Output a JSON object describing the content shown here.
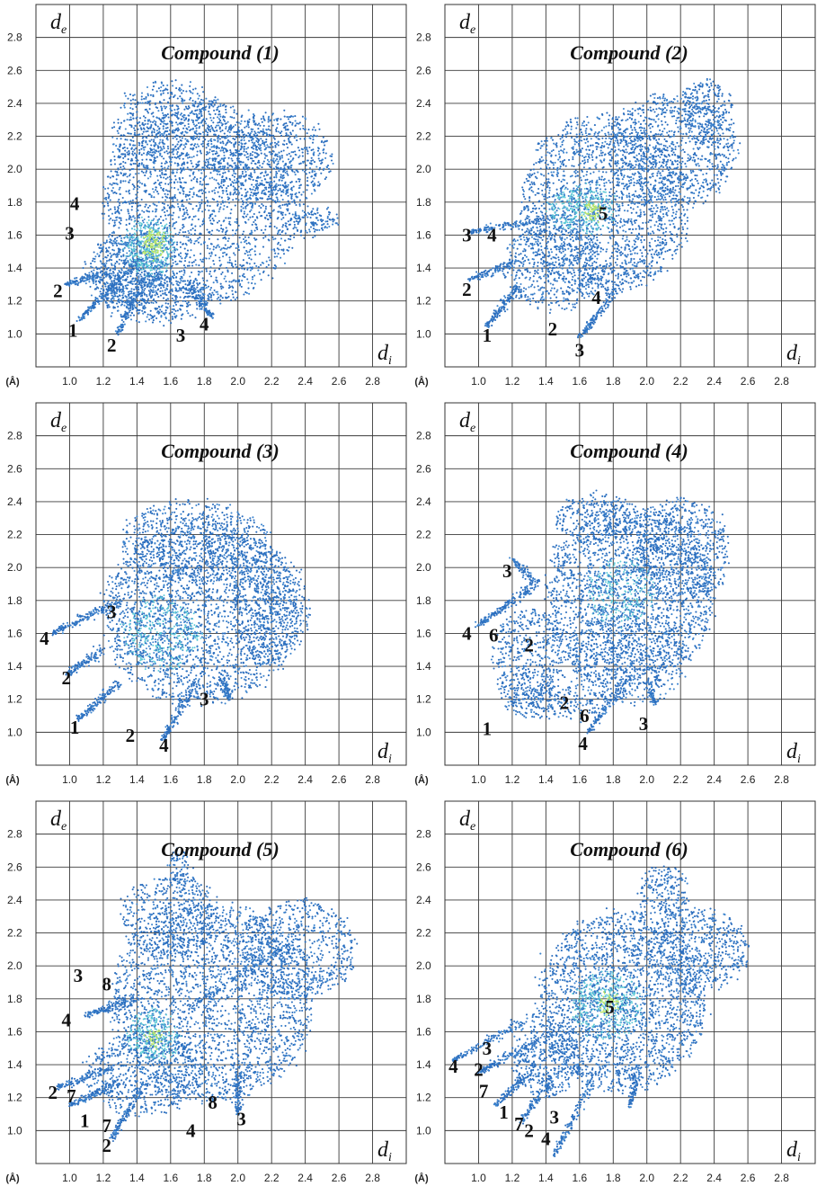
{
  "figure": {
    "unit_label": "(Å)",
    "x_axis_symbol": "d",
    "x_axis_subscript": "i",
    "y_axis_symbol": "d",
    "y_axis_subscript": "e",
    "x_ticks": [
      "1.0",
      "1.2",
      "1.4",
      "1.6",
      "1.8",
      "2.0",
      "2.2",
      "2.4",
      "2.6",
      "2.8"
    ],
    "y_ticks": [
      "1.0",
      "1.2",
      "1.4",
      "1.6",
      "1.8",
      "2.0",
      "2.2",
      "2.4",
      "2.6",
      "2.8"
    ]
  },
  "chart_data": [
    {
      "type": "scatter",
      "title": "Compound (1)",
      "xlim": [
        0.8,
        3.0
      ],
      "ylim": [
        0.8,
        3.0
      ],
      "grid": true,
      "colors": {
        "points": "#2c6fbf",
        "dense": "#5cc9d6",
        "core": "#b9e66a"
      },
      "regions": [
        {
          "kind": "blob",
          "cx": 1.78,
          "cy": 1.8,
          "rx": 0.58,
          "ry": 0.62,
          "n": 2200
        },
        {
          "kind": "blob",
          "cx": 2.2,
          "cy": 2.05,
          "rx": 0.36,
          "ry": 0.3,
          "n": 700
        },
        {
          "kind": "blob",
          "cx": 1.6,
          "cy": 2.25,
          "rx": 0.35,
          "ry": 0.28,
          "n": 600
        },
        {
          "kind": "blob",
          "cx": 1.32,
          "cy": 1.38,
          "rx": 0.22,
          "ry": 0.22,
          "n": 500
        },
        {
          "kind": "blob",
          "cx": 1.52,
          "cy": 1.22,
          "rx": 0.32,
          "ry": 0.14,
          "n": 400
        },
        {
          "kind": "blob",
          "cx": 2.45,
          "cy": 1.68,
          "rx": 0.14,
          "ry": 0.08,
          "n": 120
        },
        {
          "kind": "spike",
          "from": [
            1.45,
            1.48
          ],
          "to": [
            1.05,
            1.08
          ],
          "n": 180
        },
        {
          "kind": "spike",
          "from": [
            1.25,
            1.38
          ],
          "to": [
            0.98,
            1.3
          ],
          "n": 120
        },
        {
          "kind": "spike",
          "from": [
            1.45,
            1.35
          ],
          "to": [
            1.28,
            1.0
          ],
          "n": 120
        },
        {
          "kind": "spike",
          "from": [
            1.7,
            1.3
          ],
          "to": [
            1.85,
            1.1
          ],
          "n": 100
        },
        {
          "kind": "dense",
          "cx": 1.48,
          "cy": 1.53,
          "rx": 0.14,
          "ry": 0.16,
          "n": 420
        },
        {
          "kind": "core",
          "cx": 1.5,
          "cy": 1.55,
          "rx": 0.06,
          "ry": 0.08,
          "n": 120
        }
      ],
      "labels": [
        {
          "text": "1",
          "x": 1.02,
          "y": 1.02
        },
        {
          "text": "2",
          "x": 0.93,
          "y": 1.26
        },
        {
          "text": "2",
          "x": 1.25,
          "y": 0.93
        },
        {
          "text": "3",
          "x": 1.0,
          "y": 1.61
        },
        {
          "text": "4",
          "x": 1.03,
          "y": 1.79
        },
        {
          "text": "3",
          "x": 1.66,
          "y": 0.99
        },
        {
          "text": "4",
          "x": 1.8,
          "y": 1.06
        }
      ]
    },
    {
      "type": "scatter",
      "title": "Compound (2)",
      "xlim": [
        0.8,
        3.0
      ],
      "ylim": [
        0.8,
        3.0
      ],
      "grid": true,
      "colors": {
        "points": "#2c6fbf",
        "dense": "#5cc9d6",
        "core": "#b9e66a"
      },
      "regions": [
        {
          "kind": "blob",
          "cx": 1.75,
          "cy": 1.78,
          "rx": 0.5,
          "ry": 0.55,
          "n": 2000
        },
        {
          "kind": "blob",
          "cx": 2.15,
          "cy": 2.12,
          "rx": 0.38,
          "ry": 0.35,
          "n": 900
        },
        {
          "kind": "blob",
          "cx": 2.35,
          "cy": 2.35,
          "rx": 0.16,
          "ry": 0.2,
          "n": 250
        },
        {
          "kind": "blob",
          "cx": 1.45,
          "cy": 1.42,
          "rx": 0.3,
          "ry": 0.28,
          "n": 500
        },
        {
          "kind": "spike",
          "from": [
            1.25,
            1.3
          ],
          "to": [
            1.05,
            1.05
          ],
          "n": 150
        },
        {
          "kind": "spike",
          "from": [
            1.25,
            1.45
          ],
          "to": [
            0.95,
            1.33
          ],
          "n": 120
        },
        {
          "kind": "spike",
          "from": [
            1.4,
            1.7
          ],
          "to": [
            0.95,
            1.62
          ],
          "n": 130
        },
        {
          "kind": "spike",
          "from": [
            1.85,
            1.3
          ],
          "to": [
            1.6,
            0.98
          ],
          "n": 130
        },
        {
          "kind": "dense",
          "cx": 1.62,
          "cy": 1.76,
          "rx": 0.2,
          "ry": 0.14,
          "n": 360
        },
        {
          "kind": "core",
          "cx": 1.68,
          "cy": 1.74,
          "rx": 0.05,
          "ry": 0.05,
          "n": 60
        }
      ],
      "labels": [
        {
          "text": "1",
          "x": 1.05,
          "y": 0.99
        },
        {
          "text": "2",
          "x": 0.93,
          "y": 1.27
        },
        {
          "text": "2",
          "x": 1.44,
          "y": 1.03
        },
        {
          "text": "3",
          "x": 0.93,
          "y": 1.6
        },
        {
          "text": "4",
          "x": 1.08,
          "y": 1.6
        },
        {
          "text": "4",
          "x": 1.7,
          "y": 1.22
        },
        {
          "text": "3",
          "x": 1.6,
          "y": 0.9
        },
        {
          "text": "5",
          "x": 1.74,
          "y": 1.73
        }
      ]
    },
    {
      "type": "scatter",
      "title": "Compound (3)",
      "xlim": [
        0.8,
        3.0
      ],
      "ylim": [
        0.8,
        3.0
      ],
      "grid": true,
      "colors": {
        "points": "#2c6fbf",
        "dense": "#5cc9d6",
        "core": "#b9e66a"
      },
      "regions": [
        {
          "kind": "blob",
          "cx": 1.78,
          "cy": 1.72,
          "rx": 0.58,
          "ry": 0.55,
          "n": 2400
        },
        {
          "kind": "blob",
          "cx": 1.75,
          "cy": 2.15,
          "rx": 0.45,
          "ry": 0.25,
          "n": 700
        },
        {
          "kind": "blob",
          "cx": 2.2,
          "cy": 1.75,
          "rx": 0.22,
          "ry": 0.35,
          "n": 400
        },
        {
          "kind": "spike",
          "from": [
            1.3,
            1.3
          ],
          "to": [
            1.05,
            1.08
          ],
          "n": 140
        },
        {
          "kind": "spike",
          "from": [
            1.2,
            1.5
          ],
          "to": [
            0.98,
            1.35
          ],
          "n": 120
        },
        {
          "kind": "spike",
          "from": [
            1.3,
            1.8
          ],
          "to": [
            0.9,
            1.6
          ],
          "n": 160
        },
        {
          "kind": "spike",
          "from": [
            1.75,
            1.3
          ],
          "to": [
            1.55,
            0.95
          ],
          "n": 140
        },
        {
          "kind": "spike",
          "from": [
            1.9,
            1.35
          ],
          "to": [
            1.95,
            1.2
          ],
          "n": 80
        },
        {
          "kind": "dense",
          "cx": 1.55,
          "cy": 1.6,
          "rx": 0.22,
          "ry": 0.22,
          "n": 380
        }
      ],
      "labels": [
        {
          "text": "1",
          "x": 1.03,
          "y": 1.03
        },
        {
          "text": "2",
          "x": 0.98,
          "y": 1.33
        },
        {
          "text": "2",
          "x": 1.36,
          "y": 0.98
        },
        {
          "text": "4",
          "x": 0.85,
          "y": 1.57
        },
        {
          "text": "3",
          "x": 1.25,
          "y": 1.73
        },
        {
          "text": "3",
          "x": 1.8,
          "y": 1.2
        },
        {
          "text": "4",
          "x": 1.56,
          "y": 0.92
        }
      ]
    },
    {
      "type": "scatter",
      "title": "Compound (4)",
      "xlim": [
        0.8,
        3.0
      ],
      "ylim": [
        0.8,
        3.0
      ],
      "grid": true,
      "colors": {
        "points": "#2c6fbf",
        "dense": "#5cc9d6",
        "core": "#b9e66a"
      },
      "regions": [
        {
          "kind": "blob",
          "cx": 1.9,
          "cy": 1.82,
          "rx": 0.5,
          "ry": 0.55,
          "n": 2000
        },
        {
          "kind": "blob",
          "cx": 2.2,
          "cy": 2.1,
          "rx": 0.3,
          "ry": 0.32,
          "n": 700
        },
        {
          "kind": "blob",
          "cx": 1.7,
          "cy": 2.3,
          "rx": 0.25,
          "ry": 0.15,
          "n": 300
        },
        {
          "kind": "blob",
          "cx": 1.3,
          "cy": 1.45,
          "rx": 0.22,
          "ry": 0.3,
          "n": 500
        },
        {
          "kind": "blob",
          "cx": 1.45,
          "cy": 1.18,
          "rx": 0.3,
          "ry": 0.1,
          "n": 260
        },
        {
          "kind": "blob",
          "cx": 1.9,
          "cy": 1.45,
          "rx": 0.35,
          "ry": 0.28,
          "n": 500
        },
        {
          "kind": "spike",
          "from": [
            1.35,
            1.9
          ],
          "to": [
            1.0,
            1.65
          ],
          "n": 160
        },
        {
          "kind": "spike",
          "from": [
            1.35,
            1.9
          ],
          "to": [
            1.2,
            2.05
          ],
          "n": 90
        },
        {
          "kind": "spike",
          "from": [
            1.9,
            1.35
          ],
          "to": [
            1.65,
            1.0
          ],
          "n": 130
        },
        {
          "kind": "spike",
          "from": [
            2.0,
            1.3
          ],
          "to": [
            2.05,
            1.18
          ],
          "n": 60
        },
        {
          "kind": "dense",
          "cx": 1.85,
          "cy": 1.85,
          "rx": 0.2,
          "ry": 0.2,
          "n": 250
        }
      ],
      "labels": [
        {
          "text": "1",
          "x": 1.05,
          "y": 1.02
        },
        {
          "text": "2",
          "x": 1.3,
          "y": 1.53
        },
        {
          "text": "2",
          "x": 1.51,
          "y": 1.18
        },
        {
          "text": "3",
          "x": 1.17,
          "y": 1.98
        },
        {
          "text": "4",
          "x": 0.93,
          "y": 1.6
        },
        {
          "text": "6",
          "x": 1.09,
          "y": 1.59
        },
        {
          "text": "6",
          "x": 1.63,
          "y": 1.1
        },
        {
          "text": "4",
          "x": 1.62,
          "y": 0.93
        },
        {
          "text": "3",
          "x": 1.98,
          "y": 1.05
        }
      ]
    },
    {
      "type": "scatter",
      "title": "Compound (5)",
      "xlim": [
        0.8,
        3.0
      ],
      "ylim": [
        0.8,
        3.0
      ],
      "grid": true,
      "colors": {
        "points": "#2c6fbf",
        "dense": "#5cc9d6",
        "core": "#b9e66a"
      },
      "regions": [
        {
          "kind": "blob",
          "cx": 1.85,
          "cy": 1.78,
          "rx": 0.6,
          "ry": 0.6,
          "n": 2400
        },
        {
          "kind": "blob",
          "cx": 2.35,
          "cy": 2.1,
          "rx": 0.35,
          "ry": 0.3,
          "n": 700
        },
        {
          "kind": "blob",
          "cx": 1.6,
          "cy": 2.3,
          "rx": 0.3,
          "ry": 0.25,
          "n": 500
        },
        {
          "kind": "blob",
          "cx": 1.65,
          "cy": 2.6,
          "rx": 0.06,
          "ry": 0.12,
          "n": 80
        },
        {
          "kind": "blob",
          "cx": 1.45,
          "cy": 1.35,
          "rx": 0.35,
          "ry": 0.25,
          "n": 600
        },
        {
          "kind": "spike",
          "from": [
            1.3,
            1.3
          ],
          "to": [
            1.0,
            1.15
          ],
          "n": 140
        },
        {
          "kind": "spike",
          "from": [
            1.3,
            1.4
          ],
          "to": [
            0.92,
            1.26
          ],
          "n": 130
        },
        {
          "kind": "spike",
          "from": [
            1.4,
            1.8
          ],
          "to": [
            1.1,
            1.7
          ],
          "n": 140
        },
        {
          "kind": "spike",
          "from": [
            1.45,
            1.3
          ],
          "to": [
            1.25,
            0.95
          ],
          "n": 140
        },
        {
          "kind": "spike",
          "from": [
            2.0,
            1.35
          ],
          "to": [
            2.0,
            1.1
          ],
          "n": 110
        },
        {
          "kind": "spike",
          "from": [
            1.65,
            1.7
          ],
          "to": [
            2.25,
            2.1
          ],
          "n": 120
        },
        {
          "kind": "dense",
          "cx": 1.5,
          "cy": 1.58,
          "rx": 0.15,
          "ry": 0.15,
          "n": 300
        },
        {
          "kind": "core",
          "cx": 1.5,
          "cy": 1.56,
          "rx": 0.04,
          "ry": 0.05,
          "n": 40
        }
      ],
      "labels": [
        {
          "text": "1",
          "x": 1.09,
          "y": 1.06
        },
        {
          "text": "2",
          "x": 0.9,
          "y": 1.23
        },
        {
          "text": "7",
          "x": 1.01,
          "y": 1.21
        },
        {
          "text": "7",
          "x": 1.22,
          "y": 1.03
        },
        {
          "text": "2",
          "x": 1.22,
          "y": 0.91
        },
        {
          "text": "3",
          "x": 1.05,
          "y": 1.94
        },
        {
          "text": "8",
          "x": 1.22,
          "y": 1.89
        },
        {
          "text": "4",
          "x": 0.98,
          "y": 1.67
        },
        {
          "text": "4",
          "x": 1.72,
          "y": 1.0
        },
        {
          "text": "8",
          "x": 1.85,
          "y": 1.17
        },
        {
          "text": "3",
          "x": 2.02,
          "y": 1.07
        }
      ]
    },
    {
      "type": "scatter",
      "title": "Compound (6)",
      "xlim": [
        0.8,
        3.0
      ],
      "ylim": [
        0.8,
        3.0
      ],
      "grid": true,
      "colors": {
        "points": "#2c6fbf",
        "dense": "#5cc9d6",
        "core": "#b9e66a"
      },
      "regions": [
        {
          "kind": "blob",
          "cx": 1.85,
          "cy": 1.78,
          "rx": 0.5,
          "ry": 0.55,
          "n": 2200
        },
        {
          "kind": "blob",
          "cx": 2.3,
          "cy": 2.1,
          "rx": 0.3,
          "ry": 0.25,
          "n": 600
        },
        {
          "kind": "blob",
          "cx": 2.1,
          "cy": 2.45,
          "rx": 0.15,
          "ry": 0.15,
          "n": 200
        },
        {
          "kind": "blob",
          "cx": 1.4,
          "cy": 1.42,
          "rx": 0.2,
          "ry": 0.22,
          "n": 400
        },
        {
          "kind": "spike",
          "from": [
            1.35,
            1.7
          ],
          "to": [
            0.85,
            1.43
          ],
          "n": 160
        },
        {
          "kind": "spike",
          "from": [
            1.35,
            1.55
          ],
          "to": [
            1.0,
            1.35
          ],
          "n": 130
        },
        {
          "kind": "spike",
          "from": [
            1.35,
            1.4
          ],
          "to": [
            1.1,
            1.15
          ],
          "n": 120
        },
        {
          "kind": "spike",
          "from": [
            1.45,
            1.35
          ],
          "to": [
            1.25,
            1.05
          ],
          "n": 110
        },
        {
          "kind": "spike",
          "from": [
            1.7,
            1.35
          ],
          "to": [
            1.45,
            0.85
          ],
          "n": 140
        },
        {
          "kind": "spike",
          "from": [
            1.95,
            1.4
          ],
          "to": [
            1.9,
            1.15
          ],
          "n": 90
        },
        {
          "kind": "dense",
          "cx": 1.76,
          "cy": 1.76,
          "rx": 0.2,
          "ry": 0.2,
          "n": 400
        },
        {
          "kind": "core",
          "cx": 1.77,
          "cy": 1.77,
          "rx": 0.05,
          "ry": 0.05,
          "n": 60
        }
      ],
      "labels": [
        {
          "text": "1",
          "x": 1.15,
          "y": 1.11
        },
        {
          "text": "2",
          "x": 1.0,
          "y": 1.37
        },
        {
          "text": "2",
          "x": 1.3,
          "y": 1.0
        },
        {
          "text": "3",
          "x": 1.05,
          "y": 1.5
        },
        {
          "text": "3",
          "x": 1.45,
          "y": 1.08
        },
        {
          "text": "4",
          "x": 0.85,
          "y": 1.39
        },
        {
          "text": "4",
          "x": 1.4,
          "y": 0.95
        },
        {
          "text": "7",
          "x": 1.03,
          "y": 1.24
        },
        {
          "text": "7",
          "x": 1.24,
          "y": 1.04
        },
        {
          "text": "5",
          "x": 1.78,
          "y": 1.75
        }
      ]
    }
  ]
}
